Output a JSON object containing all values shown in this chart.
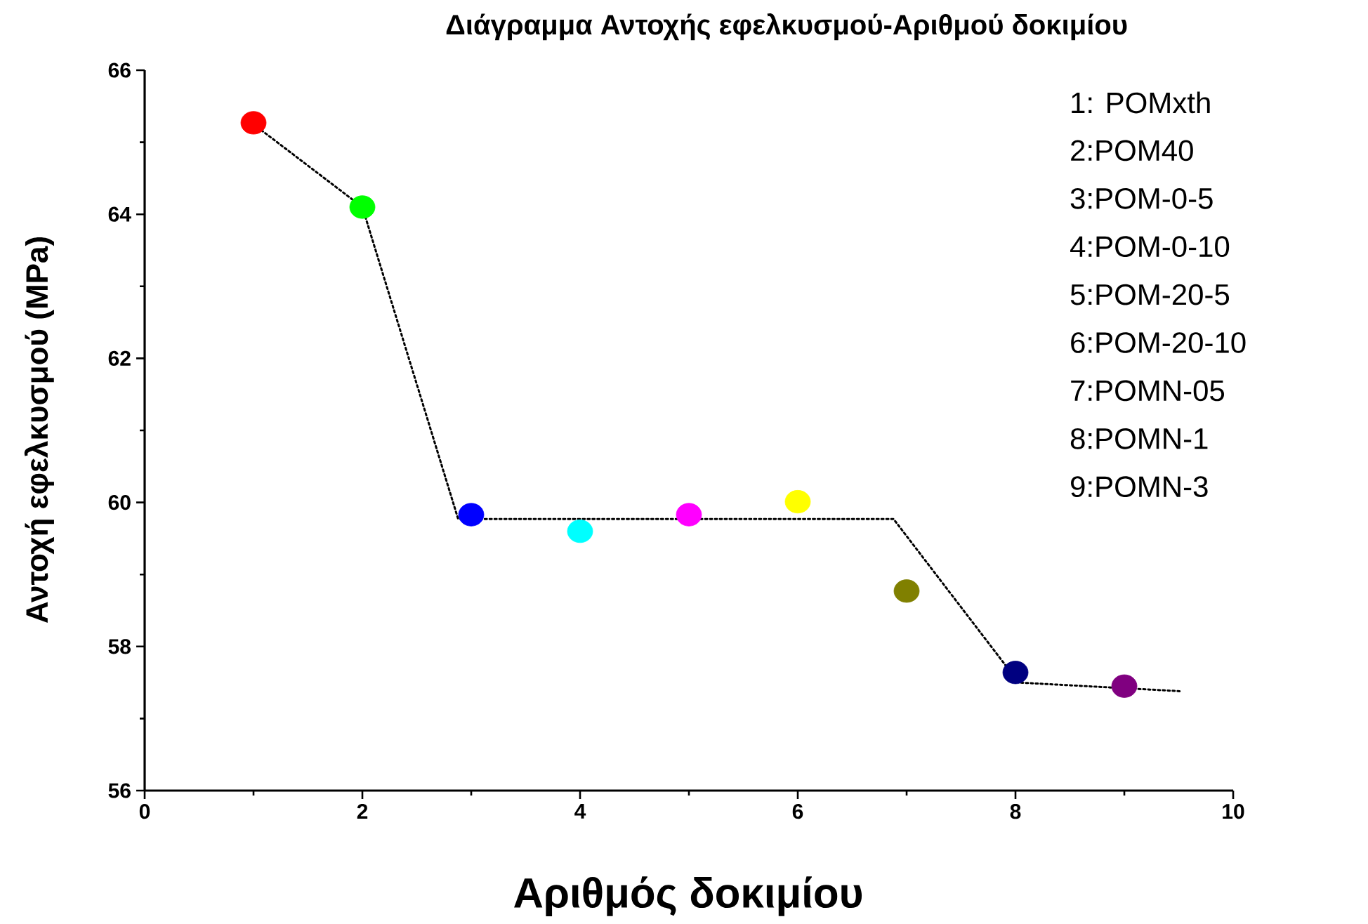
{
  "chart_data": {
    "type": "scatter",
    "title": "Διάγραμμα Αντοχής εφελκυσμού-Αριθμού δοκιμίου",
    "xlabel": "Αριθμός δοκιμίου",
    "ylabel": "Αντοχή εφελκυσμού (MPa)",
    "xlim": [
      0,
      10
    ],
    "ylim": [
      56,
      66
    ],
    "xticks": [
      0,
      2,
      4,
      6,
      8,
      10
    ],
    "yticks": [
      56,
      58,
      60,
      62,
      64,
      66
    ],
    "grid": false,
    "annotations": [
      "1: POMxth",
      "2:POM40",
      "3:POM-0-5",
      "4:POM-0-10",
      "5:POM-20-5",
      "6:POM-20-10",
      "7:POMN-05",
      "8:POMN-1",
      "9:POMN-3"
    ],
    "series": [
      {
        "x": [
          1,
          2,
          3,
          4,
          5,
          6,
          7,
          8,
          9
        ],
        "values": [
          65.27,
          64.1,
          59.83,
          59.6,
          59.83,
          60.01,
          58.77,
          57.64,
          57.45
        ],
        "colors": [
          "#ff0000",
          "#00ff00",
          "#0000ff",
          "#00ffff",
          "#ff00ff",
          "#ffff00",
          "#808000",
          "#000080",
          "#800080"
        ]
      },
      {
        "type": "line",
        "x": [
          1,
          2,
          2.88,
          6.88,
          8.03,
          9.51
        ],
        "values": [
          65.25,
          64.1,
          59.77,
          59.77,
          57.5,
          57.38
        ],
        "color": "#000000",
        "line_style": "dotted"
      }
    ]
  }
}
